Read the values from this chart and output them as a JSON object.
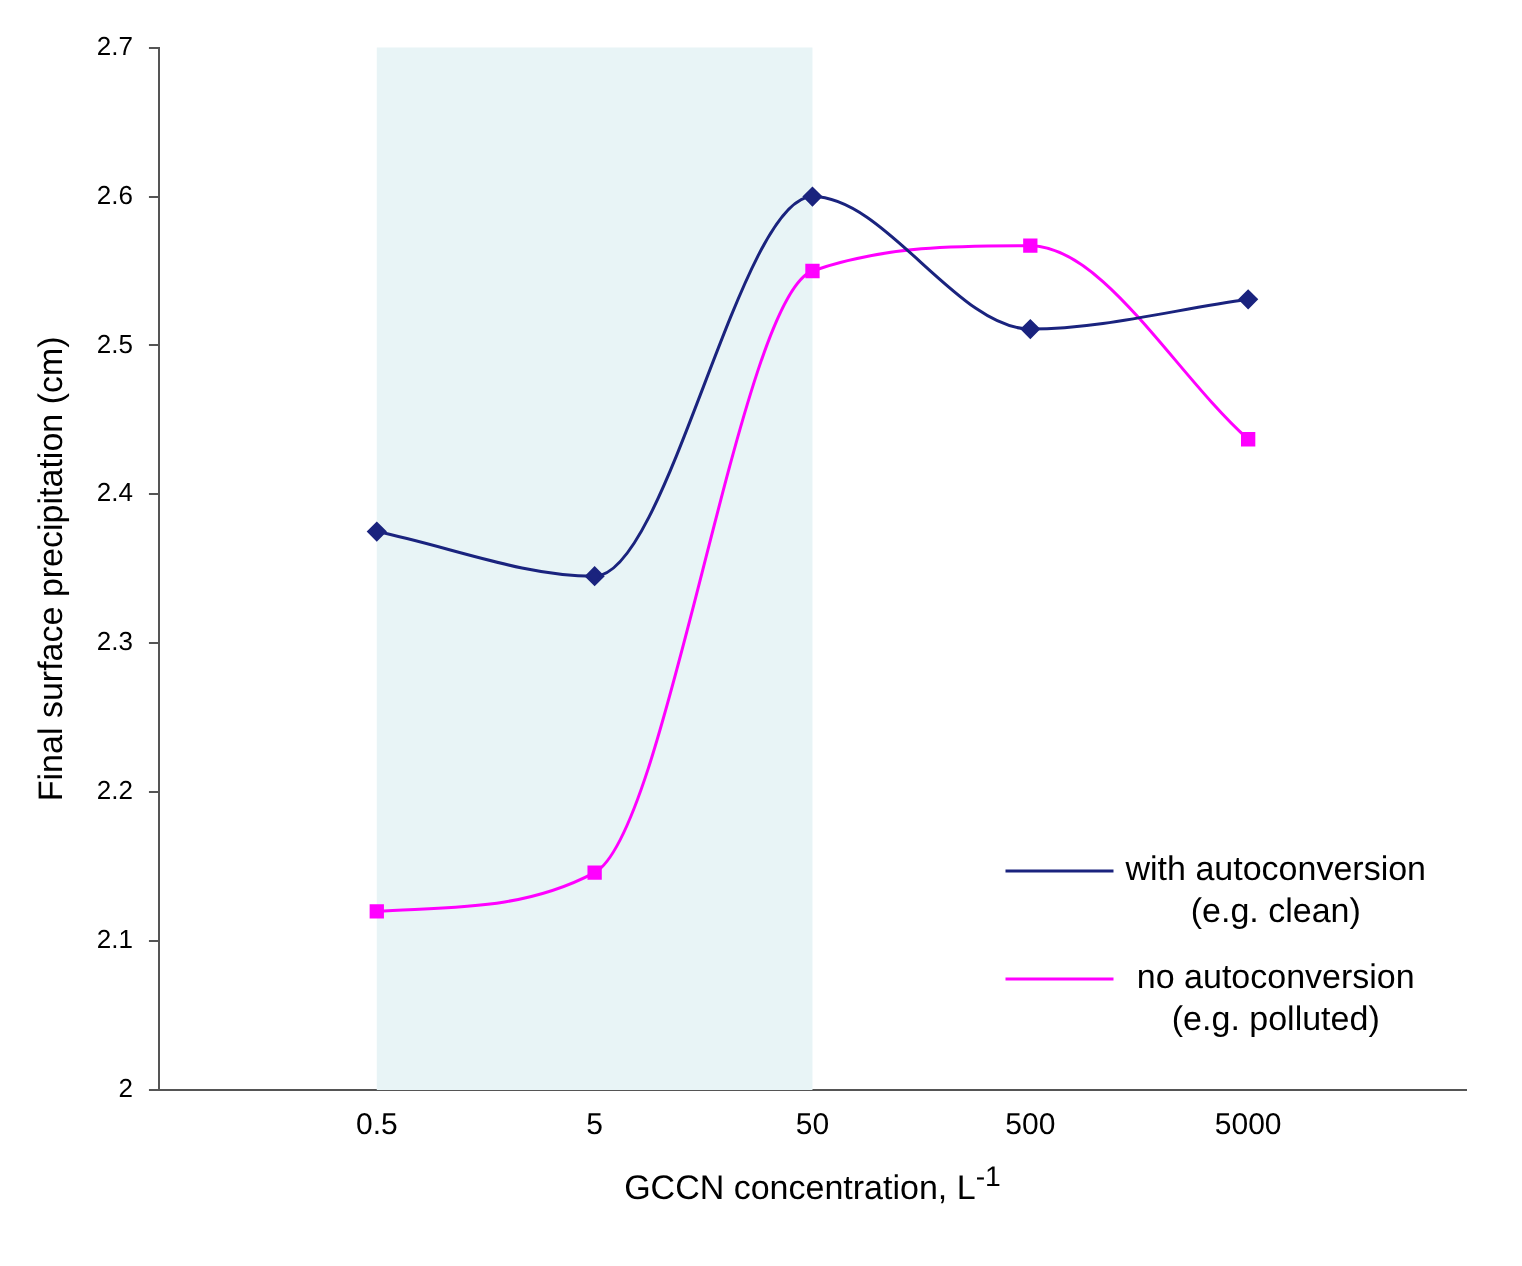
{
  "chart_data": {
    "type": "line",
    "xlabel": "GCCN concentration, L$^{-1}$",
    "ylabel": "Final surface precipitation (cm)",
    "categories": [
      null,
      "0.5",
      "5",
      "50",
      "500",
      "5000",
      null
    ],
    "series": [
      {
        "name": "with autoconversion (e.g. clean)",
        "color": "#1a237e",
        "marker": "diamond",
        "values": [
          null,
          2.375,
          2.345,
          2.6,
          2.511,
          2.531,
          null
        ]
      },
      {
        "name": "no autoconversion (e.g. polluted)",
        "color": "#ff00ff",
        "marker": "square",
        "values": [
          null,
          2.12,
          2.146,
          2.55,
          2.567,
          2.437,
          null
        ]
      }
    ],
    "ylim": [
      2,
      2.7
    ],
    "yticks": [
      2,
      2.1,
      2.2,
      2.3,
      2.4,
      2.5,
      2.6,
      2.7
    ],
    "bands": [
      {
        "axis": "x",
        "from": "0.5",
        "to": "50",
        "color": "#e8f4f6"
      }
    ],
    "grid": false,
    "legend": "bottom right",
    "line_style": "solid"
  }
}
